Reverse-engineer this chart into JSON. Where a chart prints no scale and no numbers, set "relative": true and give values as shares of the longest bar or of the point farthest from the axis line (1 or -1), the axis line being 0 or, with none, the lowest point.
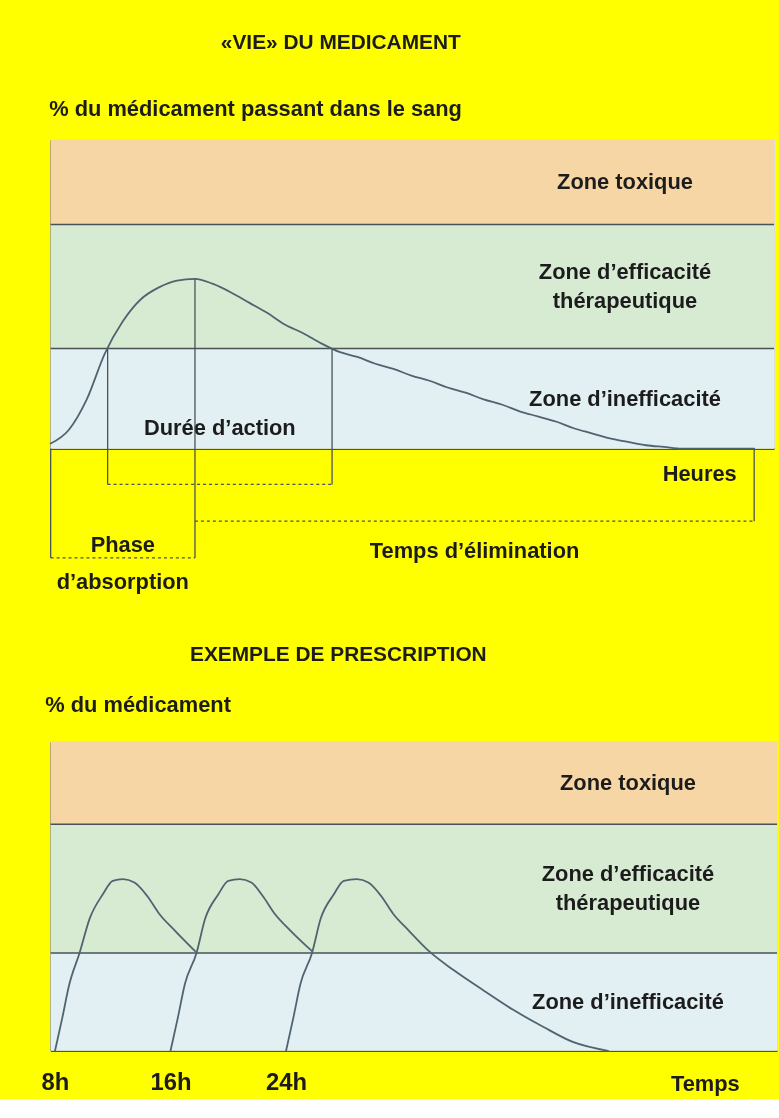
{
  "chart_data": [
    {
      "type": "line",
      "title": "«VIE» DU MEDICAMENT",
      "ylabel": "% du médicament passant dans le sang",
      "xlabel": "Heures",
      "relative": true,
      "tick_labels": false,
      "categories": [
        null,
        null,
        null,
        null,
        null,
        null,
        null,
        null,
        null,
        null,
        null,
        null,
        null,
        null,
        null,
        null,
        null,
        null,
        null,
        null,
        null,
        null,
        null,
        null,
        null,
        null,
        null,
        null,
        null,
        null,
        null,
        null,
        null,
        null,
        null,
        null,
        null,
        null,
        null,
        null
      ],
      "series": [
        {
          "color": "#4f6470",
          "values": [
            0.03,
            0.11,
            0.29,
            0.56,
            0.75,
            0.88,
            0.95,
            0.99,
            1.0,
            0.97,
            0.92,
            0.86,
            0.8,
            0.73,
            0.68,
            0.62,
            0.57,
            0.54,
            0.5,
            0.47,
            0.43,
            0.4,
            0.36,
            0.33,
            0.29,
            0.26,
            0.22,
            0.19,
            0.16,
            0.12,
            0.09,
            0.06,
            0.04,
            0.02,
            0.01,
            0,
            0,
            0,
            0,
            0
          ]
        }
      ],
      "bands": [
        {
          "axis": "y",
          "from": 0,
          "to": 0.59,
          "label": "Zone d’inefficacité",
          "color": "#e2eff3"
        },
        {
          "axis": "y",
          "from": 0.59,
          "to": 1.32,
          "label": "Zone d’efficacité\nthérapeutique",
          "color": "#d7ebd3"
        },
        {
          "axis": "y",
          "from": 1.32,
          "to": 1.82,
          "label": "Zone toxique",
          "color": "#f6d6a4"
        }
      ],
      "ref_lines": [
        {
          "axis": "y",
          "value": 0.59,
          "color": "#4a5257"
        },
        {
          "axis": "y",
          "value": 1.32,
          "color": "#4a5257"
        }
      ],
      "annotations": [
        "Durée d’action",
        "Phase\nd’absorption",
        "Temps d’élimination"
      ]
    },
    {
      "type": "line",
      "title": "EXEMPLE DE PRESCRIPTION",
      "ylabel": "% du médicament",
      "xlabel": "Temps",
      "relative": true,
      "tick_labels": "x",
      "xlim": [
        7.7,
        58
      ],
      "xticks": [
        {
          "value": 8,
          "label": "8h"
        },
        {
          "value": 16,
          "label": "16h"
        },
        {
          "value": 24,
          "label": "24h"
        }
      ],
      "series": [
        {
          "color": "#4f6470",
          "x": [
            8,
            8.5,
            9,
            9.7,
            10.4,
            11.3,
            12,
            12.7,
            13.5,
            14.4,
            15.2,
            16.3,
            17.7
          ],
          "values": [
            0,
            0.19,
            0.39,
            0.57,
            0.77,
            0.91,
            0.99,
            1,
            0.98,
            0.9,
            0.8,
            0.7,
            0.58
          ]
        },
        {
          "color": "#4f6470",
          "x": [
            16,
            16.5,
            17,
            17.8,
            18.4,
            19.3,
            20,
            20.8,
            21.6,
            22.4,
            23.2,
            24.3,
            25.8
          ],
          "values": [
            0,
            0.19,
            0.39,
            0.57,
            0.77,
            0.91,
            0.99,
            1,
            0.98,
            0.9,
            0.8,
            0.7,
            0.58
          ]
        },
        {
          "color": "#4f6470",
          "x": [
            24,
            24.5,
            25,
            25.8,
            26.4,
            27.3,
            28,
            28.9,
            29.7,
            30.6,
            31.4,
            32.5,
            33.9,
            35.6,
            37.7,
            39.7,
            41.8,
            43.9,
            46.3
          ],
          "values": [
            0,
            0.19,
            0.39,
            0.57,
            0.77,
            0.91,
            0.99,
            1,
            0.98,
            0.9,
            0.8,
            0.7,
            0.58,
            0.47,
            0.35,
            0.24,
            0.14,
            0.05,
            0
          ]
        }
      ],
      "bands": [
        {
          "axis": "y",
          "from": 0,
          "to": 0.57,
          "label": "Zone d’inefficacité",
          "color": "#e2eff3"
        },
        {
          "axis": "y",
          "from": 0.57,
          "to": 1.32,
          "label": "Zone d’efficacité\nthérapeutique",
          "color": "#d7ebd3"
        },
        {
          "axis": "y",
          "from": 1.32,
          "to": 1.8,
          "label": "Zone toxique",
          "color": "#f6d6a4"
        }
      ],
      "ref_lines": [
        {
          "axis": "y",
          "value": 0.57,
          "color": "#4a5257"
        },
        {
          "axis": "y",
          "value": 1.32,
          "color": "#4a5257"
        }
      ]
    }
  ]
}
